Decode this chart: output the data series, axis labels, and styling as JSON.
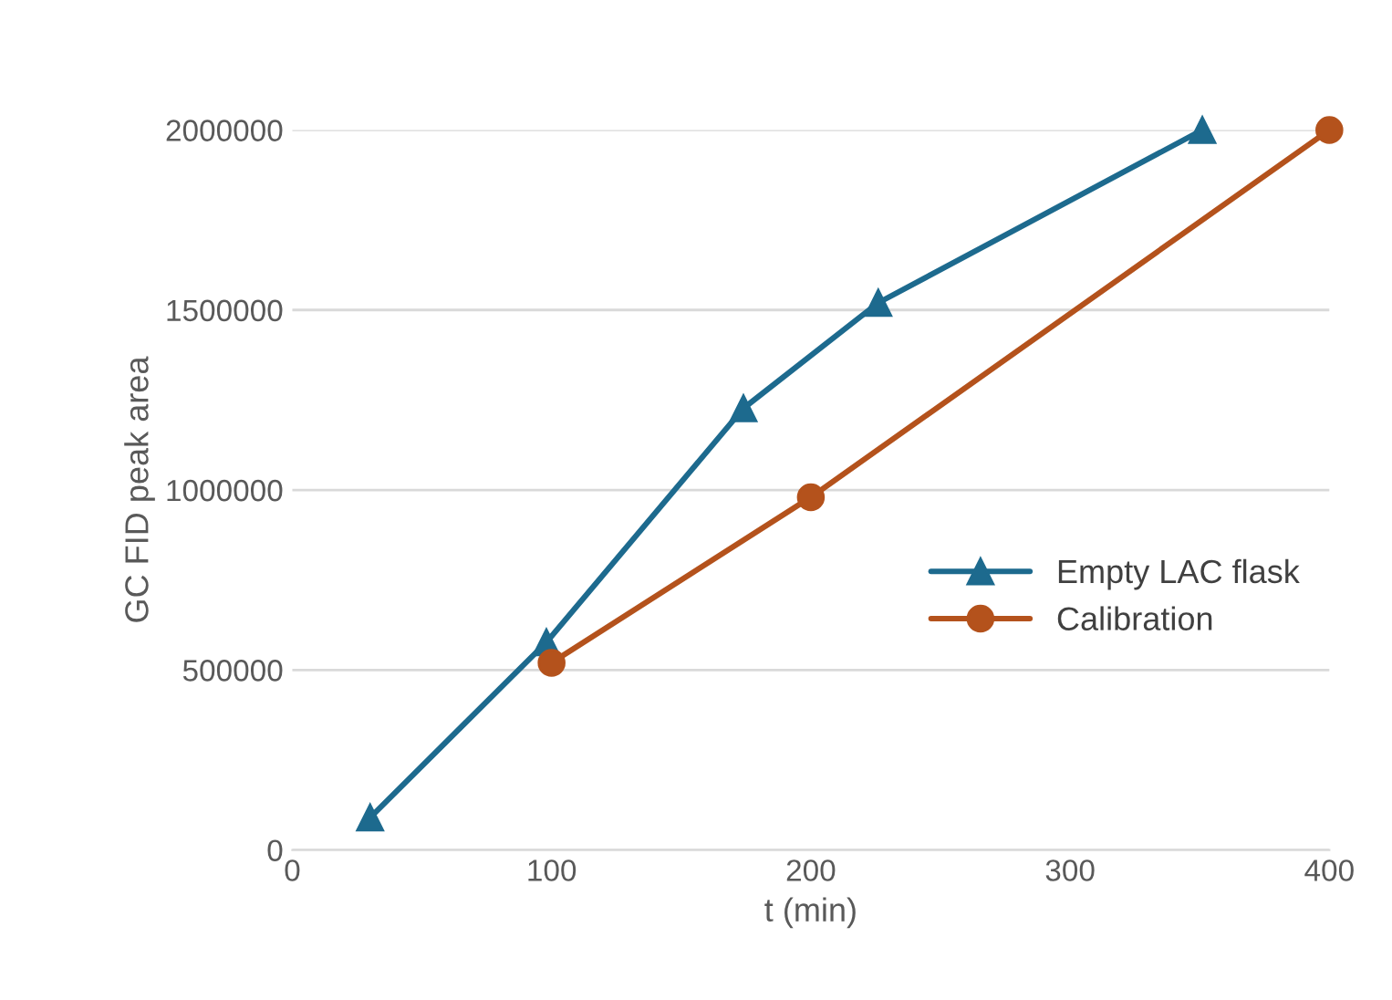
{
  "chart_data": {
    "type": "line",
    "xlabel": "t (min)",
    "ylabel": "GC FID peak area",
    "xlim": [
      0,
      400
    ],
    "xticks": [
      0,
      100,
      200,
      300,
      400
    ],
    "ylim": [
      0,
      2000000
    ],
    "yticks": [
      0,
      500000,
      1000000,
      1500000,
      2000000
    ],
    "grid": "y",
    "legend": "right",
    "line_style": "solid",
    "series": [
      {
        "name": "Empty LAC flask",
        "color": "#1d6a8e",
        "marker": "triangle",
        "x": [
          30,
          98,
          174,
          226,
          351
        ],
        "values": [
          90000,
          577000,
          1227000,
          1520000,
          2000000
        ]
      },
      {
        "name": "Calibration",
        "color": "#b4521c",
        "marker": "circle",
        "x": [
          100,
          200,
          400
        ],
        "values": [
          520000,
          980000,
          2000000
        ]
      }
    ]
  }
}
